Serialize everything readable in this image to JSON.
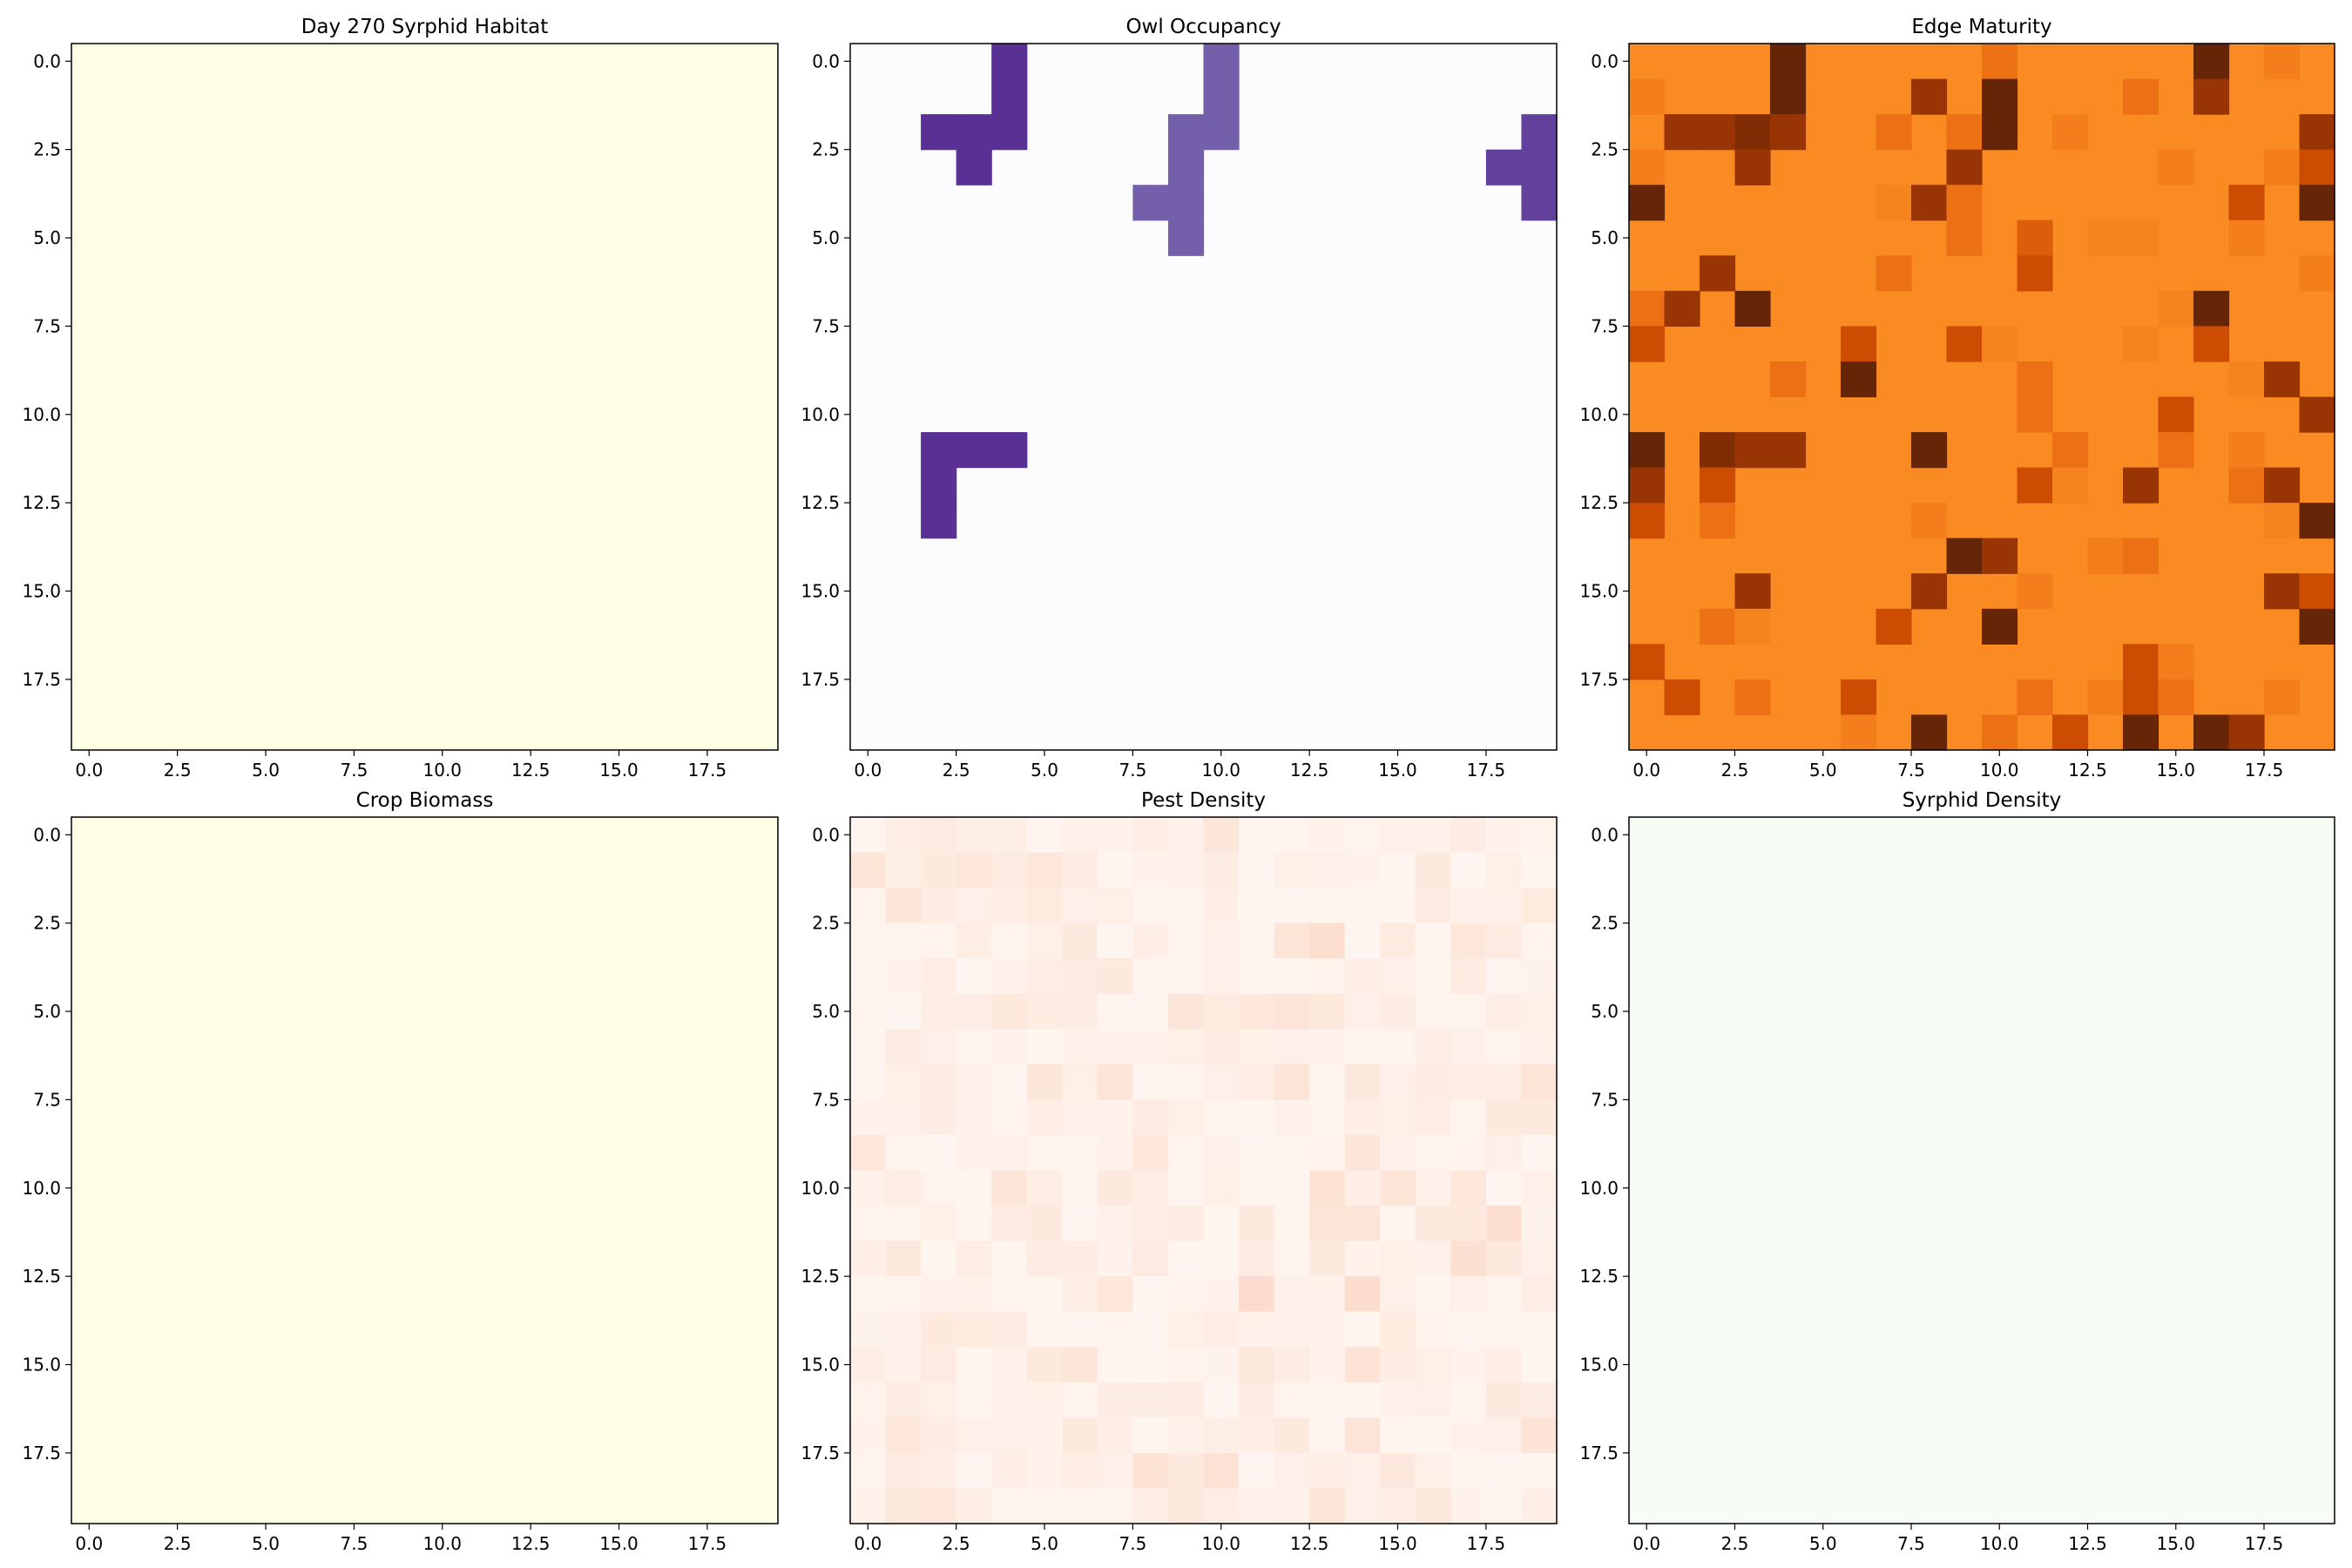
{
  "chart_data": [
    {
      "type": "heatmap",
      "title": "Day 270 Syrphid Habitat",
      "colormap": "YlOrBr",
      "base_color": "#ffffe5",
      "grid_size": [
        20,
        20
      ],
      "fill": "uniform",
      "xticks": [
        "0.0",
        "2.5",
        "5.0",
        "7.5",
        "10.0",
        "12.5",
        "15.0",
        "17.5"
      ],
      "yticks": [
        "0.0",
        "2.5",
        "5.0",
        "7.5",
        "10.0",
        "12.5",
        "15.0",
        "17.5"
      ]
    },
    {
      "type": "heatmap",
      "title": "Owl Occupancy",
      "colormap": "Purples",
      "base_color": "#fcfbfd",
      "grid_size": [
        20,
        20
      ],
      "fill": "sparse",
      "cells": [
        [
          0,
          4,
          0.85
        ],
        [
          1,
          4,
          0.85
        ],
        [
          2,
          2,
          0.85
        ],
        [
          2,
          3,
          0.85
        ],
        [
          2,
          4,
          0.85
        ],
        [
          3,
          3,
          0.85
        ],
        [
          0,
          10,
          0.7
        ],
        [
          1,
          10,
          0.7
        ],
        [
          2,
          9,
          0.7
        ],
        [
          2,
          10,
          0.7
        ],
        [
          3,
          9,
          0.7
        ],
        [
          4,
          8,
          0.7
        ],
        [
          4,
          9,
          0.7
        ],
        [
          5,
          9,
          0.7
        ],
        [
          2,
          19,
          0.8
        ],
        [
          3,
          18,
          0.8
        ],
        [
          3,
          19,
          0.8
        ],
        [
          4,
          19,
          0.8
        ],
        [
          11,
          2,
          0.85
        ],
        [
          11,
          3,
          0.85
        ],
        [
          11,
          4,
          0.85
        ],
        [
          12,
          2,
          0.85
        ],
        [
          13,
          2,
          0.85
        ]
      ],
      "xticks": [
        "0.0",
        "2.5",
        "5.0",
        "7.5",
        "10.0",
        "12.5",
        "15.0",
        "17.5"
      ],
      "yticks": [
        "0.0",
        "2.5",
        "5.0",
        "7.5",
        "10.0",
        "12.5",
        "15.0",
        "17.5"
      ]
    },
    {
      "type": "heatmap",
      "title": "Edge Maturity",
      "colormap": "Oranges",
      "base_color": "#f98b22",
      "grid_size": [
        20,
        20
      ],
      "fill": "sparse",
      "cells": [
        [
          0,
          4,
          4
        ],
        [
          0,
          10,
          1
        ],
        [
          0,
          16,
          4
        ],
        [
          0,
          18,
          0.5
        ],
        [
          1,
          0,
          0.5
        ],
        [
          1,
          4,
          4
        ],
        [
          1,
          8,
          3
        ],
        [
          1,
          10,
          4
        ],
        [
          1,
          14,
          1
        ],
        [
          1,
          16,
          3
        ],
        [
          2,
          1,
          3
        ],
        [
          2,
          2,
          3
        ],
        [
          2,
          3,
          3.5
        ],
        [
          2,
          4,
          3
        ],
        [
          2,
          7,
          1
        ],
        [
          2,
          9,
          1
        ],
        [
          2,
          10,
          4
        ],
        [
          2,
          12,
          0.5
        ],
        [
          2,
          19,
          3
        ],
        [
          3,
          0,
          0.5
        ],
        [
          3,
          3,
          3
        ],
        [
          3,
          9,
          3
        ],
        [
          3,
          15,
          0.5
        ],
        [
          3,
          18,
          0.5
        ],
        [
          3,
          19,
          2
        ],
        [
          4,
          0,
          4
        ],
        [
          4,
          7,
          0.3
        ],
        [
          4,
          8,
          3
        ],
        [
          4,
          9,
          1
        ],
        [
          4,
          17,
          2
        ],
        [
          4,
          19,
          4
        ],
        [
          5,
          9,
          1
        ],
        [
          5,
          11,
          1.5
        ],
        [
          5,
          13,
          0.3
        ],
        [
          5,
          14,
          0.3
        ],
        [
          5,
          17,
          0.5
        ],
        [
          6,
          2,
          3
        ],
        [
          6,
          7,
          1
        ],
        [
          6,
          11,
          2
        ],
        [
          6,
          19,
          0.5
        ],
        [
          7,
          0,
          1
        ],
        [
          7,
          1,
          3
        ],
        [
          7,
          3,
          4
        ],
        [
          7,
          15,
          0.3
        ],
        [
          7,
          16,
          4
        ],
        [
          8,
          0,
          2
        ],
        [
          8,
          6,
          2
        ],
        [
          8,
          9,
          2
        ],
        [
          8,
          10,
          0.3
        ],
        [
          8,
          14,
          0.3
        ],
        [
          8,
          16,
          2
        ],
        [
          9,
          4,
          1
        ],
        [
          9,
          6,
          4
        ],
        [
          9,
          11,
          1
        ],
        [
          9,
          17,
          0.3
        ],
        [
          9,
          18,
          3
        ],
        [
          10,
          11,
          1
        ],
        [
          10,
          15,
          2
        ],
        [
          10,
          19,
          3
        ],
        [
          11,
          0,
          4
        ],
        [
          11,
          2,
          3.5
        ],
        [
          11,
          3,
          3
        ],
        [
          11,
          4,
          3
        ],
        [
          11,
          8,
          4
        ],
        [
          11,
          12,
          1
        ],
        [
          11,
          15,
          1
        ],
        [
          11,
          17,
          0.5
        ],
        [
          12,
          0,
          3
        ],
        [
          12,
          2,
          2
        ],
        [
          12,
          11,
          2
        ],
        [
          12,
          12,
          0.3
        ],
        [
          12,
          14,
          3
        ],
        [
          12,
          17,
          1
        ],
        [
          12,
          18,
          3
        ],
        [
          13,
          0,
          2
        ],
        [
          13,
          2,
          1
        ],
        [
          13,
          8,
          0.5
        ],
        [
          13,
          18,
          0.3
        ],
        [
          13,
          19,
          4
        ],
        [
          14,
          9,
          4
        ],
        [
          14,
          10,
          3
        ],
        [
          14,
          13,
          0.5
        ],
        [
          14,
          14,
          1
        ],
        [
          15,
          3,
          3
        ],
        [
          15,
          8,
          3
        ],
        [
          15,
          11,
          0.5
        ],
        [
          15,
          18,
          3
        ],
        [
          15,
          19,
          2
        ],
        [
          16,
          2,
          1
        ],
        [
          16,
          3,
          0.3
        ],
        [
          16,
          7,
          2
        ],
        [
          16,
          10,
          4
        ],
        [
          16,
          19,
          4
        ],
        [
          17,
          0,
          2
        ],
        [
          17,
          14,
          2
        ],
        [
          17,
          15,
          0.5
        ],
        [
          18,
          1,
          2
        ],
        [
          18,
          3,
          1
        ],
        [
          18,
          6,
          2
        ],
        [
          18,
          11,
          1
        ],
        [
          18,
          13,
          0.5
        ],
        [
          18,
          14,
          2
        ],
        [
          18,
          15,
          1
        ],
        [
          18,
          18,
          0.5
        ],
        [
          19,
          6,
          0.5
        ],
        [
          19,
          8,
          4
        ],
        [
          19,
          10,
          1
        ],
        [
          19,
          12,
          2
        ],
        [
          19,
          14,
          4
        ],
        [
          19,
          16,
          4
        ],
        [
          19,
          17,
          3
        ]
      ],
      "xticks": [
        "0.0",
        "2.5",
        "5.0",
        "7.5",
        "10.0",
        "12.5",
        "15.0",
        "17.5"
      ],
      "yticks": [
        "0.0",
        "2.5",
        "5.0",
        "7.5",
        "10.0",
        "12.5",
        "15.0",
        "17.5"
      ]
    },
    {
      "type": "heatmap",
      "title": "Crop Biomass",
      "colormap": "YlGn",
      "base_color": "#ffffe5",
      "grid_size": [
        20,
        20
      ],
      "fill": "uniform",
      "xticks": [
        "0.0",
        "2.5",
        "5.0",
        "7.5",
        "10.0",
        "12.5",
        "15.0",
        "17.5"
      ],
      "yticks": [
        "0.0",
        "2.5",
        "5.0",
        "7.5",
        "10.0",
        "12.5",
        "15.0",
        "17.5"
      ]
    },
    {
      "type": "heatmap",
      "title": "Pest Density",
      "colormap": "Reds",
      "base_color": "#fff5f0",
      "grid_size": [
        20,
        20
      ],
      "fill": "low-noise",
      "xticks": [
        "0.0",
        "2.5",
        "5.0",
        "7.5",
        "10.0",
        "12.5",
        "15.0",
        "17.5"
      ],
      "yticks": [
        "0.0",
        "2.5",
        "5.0",
        "7.5",
        "10.0",
        "12.5",
        "15.0",
        "17.5"
      ]
    },
    {
      "type": "heatmap",
      "title": "Syrphid Density",
      "colormap": "Greens",
      "base_color": "#f7fcf5",
      "grid_size": [
        20,
        20
      ],
      "fill": "uniform",
      "xticks": [
        "0.0",
        "2.5",
        "5.0",
        "7.5",
        "10.0",
        "12.5",
        "15.0",
        "17.5"
      ],
      "yticks": [
        "0.0",
        "2.5",
        "5.0",
        "7.5",
        "10.0",
        "12.5",
        "15.0",
        "17.5"
      ]
    }
  ]
}
